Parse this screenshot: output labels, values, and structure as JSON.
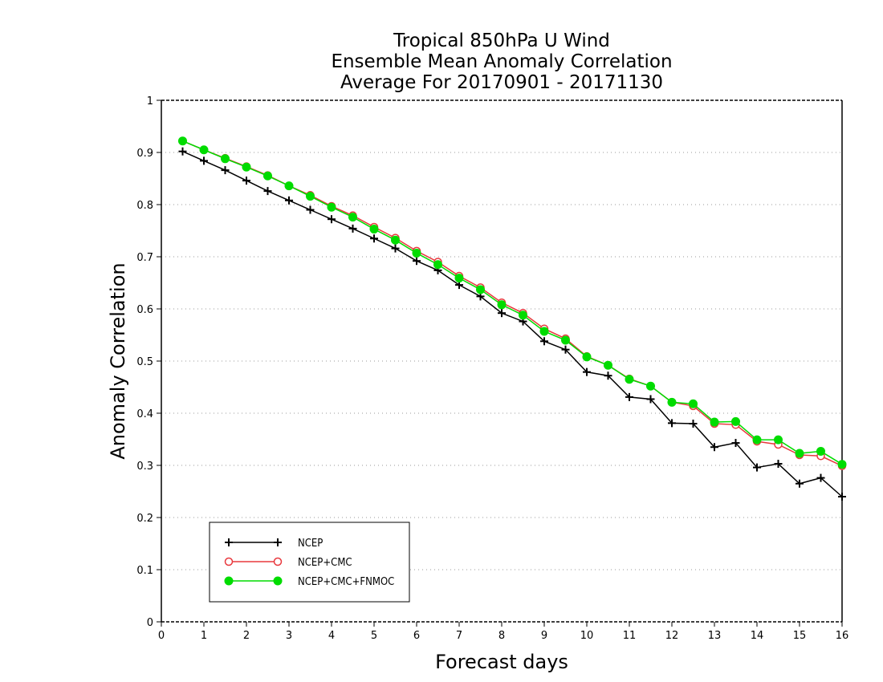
{
  "chart_data": {
    "type": "line",
    "title_lines": [
      "Tropical 850hPa U Wind",
      "Ensemble Mean Anomaly Correlation",
      "Average For 20170901 - 20171130"
    ],
    "xlabel": "Forecast days",
    "ylabel": "Anomaly Correlation",
    "xlim": [
      0,
      16
    ],
    "ylim": [
      0,
      1
    ],
    "x_ticks": [
      "0",
      "1",
      "2",
      "3",
      "4",
      "5",
      "6",
      "7",
      "8",
      "9",
      "10",
      "11",
      "12",
      "13",
      "14",
      "15",
      "16"
    ],
    "y_ticks": [
      "0",
      "0.1",
      "0.2",
      "0.3",
      "0.4",
      "0.5",
      "0.6",
      "0.7",
      "0.8",
      "0.9",
      "1"
    ],
    "grid": true,
    "legend_position": "bottom-left",
    "x": [
      0.5,
      1,
      1.5,
      2,
      2.5,
      3,
      3.5,
      4,
      4.5,
      5,
      5.5,
      6,
      6.5,
      7,
      7.5,
      8,
      8.5,
      9,
      9.5,
      10,
      10.5,
      11,
      11.5,
      12,
      12.5,
      13,
      13.5,
      14,
      14.5,
      15,
      15.5,
      16
    ],
    "series": [
      {
        "name": "NCEP",
        "color": "#000000",
        "marker": "plus",
        "values": [
          0.902,
          0.884,
          0.866,
          0.846,
          0.826,
          0.808,
          0.79,
          0.772,
          0.754,
          0.735,
          0.716,
          0.692,
          0.674,
          0.646,
          0.624,
          0.592,
          0.576,
          0.538,
          0.522,
          0.479,
          0.472,
          0.431,
          0.427,
          0.381,
          0.38,
          0.335,
          0.343,
          0.296,
          0.303,
          0.265,
          0.276,
          0.24
        ]
      },
      {
        "name": "NCEP+CMC",
        "color": "#e8383d",
        "marker": "circle-open",
        "values": [
          0.922,
          0.905,
          0.889,
          0.873,
          0.856,
          0.836,
          0.818,
          0.797,
          0.779,
          0.757,
          0.736,
          0.711,
          0.69,
          0.663,
          0.641,
          0.612,
          0.592,
          0.562,
          0.543,
          0.509,
          0.492,
          0.466,
          0.452,
          0.421,
          0.414,
          0.38,
          0.378,
          0.346,
          0.34,
          0.32,
          0.318,
          0.299
        ]
      },
      {
        "name": "NCEP+CMC+FNMOC",
        "color": "#00dc00",
        "marker": "circle-filled",
        "values": [
          0.922,
          0.905,
          0.888,
          0.872,
          0.855,
          0.836,
          0.816,
          0.795,
          0.776,
          0.753,
          0.732,
          0.707,
          0.685,
          0.659,
          0.637,
          0.608,
          0.588,
          0.557,
          0.54,
          0.508,
          0.492,
          0.465,
          0.452,
          0.421,
          0.418,
          0.383,
          0.384,
          0.349,
          0.349,
          0.323,
          0.327,
          0.302
        ]
      }
    ]
  }
}
